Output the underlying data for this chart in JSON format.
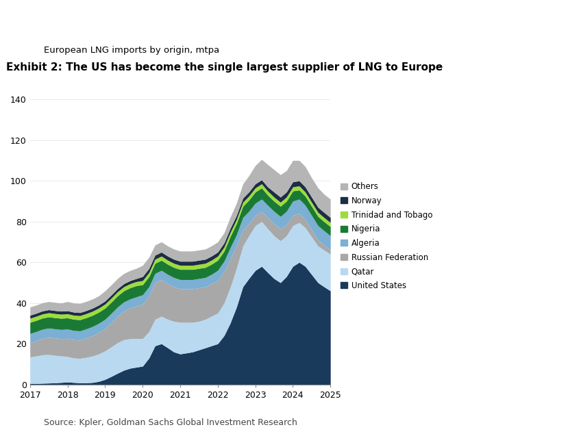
{
  "title": "Exhibit 2: The US has become the single largest supplier of LNG to Europe",
  "subtitle": "European LNG imports by origin, mtpa",
  "source": "Source: Kpler, Goldman Sachs Global Investment Research",
  "title_fontsize": 11,
  "subtitle_fontsize": 9.5,
  "source_fontsize": 9,
  "ylim": [
    0,
    140
  ],
  "yticks": [
    0,
    20,
    40,
    60,
    80,
    100,
    120,
    140
  ],
  "background_color": "#ffffff",
  "series_order": [
    "United States",
    "Qatar",
    "Russian Federation",
    "Algeria",
    "Nigeria",
    "Trinidad and Tobago",
    "Norway",
    "Others"
  ],
  "colors": {
    "United States": "#1a3a5c",
    "Qatar": "#b8d9f0",
    "Russian Federation": "#a8a8a8",
    "Algeria": "#7bafd4",
    "Nigeria": "#1a7a35",
    "Trinidad and Tobago": "#9edc3c",
    "Norway": "#1c2e44",
    "Others": "#b5b5b5"
  },
  "x_points": [
    2017.0,
    2017.17,
    2017.33,
    2017.5,
    2017.67,
    2017.83,
    2018.0,
    2018.17,
    2018.33,
    2018.5,
    2018.67,
    2018.83,
    2019.0,
    2019.17,
    2019.33,
    2019.5,
    2019.67,
    2019.83,
    2020.0,
    2020.17,
    2020.33,
    2020.5,
    2020.67,
    2020.83,
    2021.0,
    2021.17,
    2021.33,
    2021.5,
    2021.67,
    2021.83,
    2022.0,
    2022.17,
    2022.33,
    2022.5,
    2022.67,
    2022.83,
    2023.0,
    2023.17,
    2023.33,
    2023.5,
    2023.67,
    2023.83,
    2024.0,
    2024.17,
    2024.33,
    2024.5,
    2024.67,
    2024.83,
    2025.0
  ],
  "data": {
    "United States": [
      0.5,
      0.5,
      0.6,
      0.7,
      0.8,
      1.0,
      1.2,
      1.0,
      0.8,
      0.8,
      1.0,
      1.5,
      2.5,
      4.0,
      5.5,
      7.0,
      8.0,
      8.5,
      9.0,
      13.0,
      19.0,
      20.0,
      18.0,
      16.0,
      15.0,
      15.5,
      16.0,
      17.0,
      18.0,
      19.0,
      20.0,
      24.0,
      30.0,
      38.0,
      48.0,
      52.0,
      56.0,
      58.0,
      55.0,
      52.0,
      50.0,
      53.0,
      58.0,
      60.0,
      58.0,
      54.0,
      50.0,
      48.0,
      46.0
    ],
    "Qatar": [
      13.0,
      13.5,
      14.0,
      14.0,
      13.5,
      13.0,
      12.5,
      12.0,
      12.0,
      12.5,
      13.0,
      13.5,
      14.0,
      14.5,
      15.0,
      15.0,
      14.5,
      14.0,
      13.5,
      13.0,
      13.0,
      13.5,
      14.0,
      15.0,
      15.5,
      15.0,
      14.5,
      14.0,
      14.0,
      14.5,
      15.0,
      16.0,
      17.5,
      19.0,
      20.0,
      21.0,
      22.0,
      22.0,
      21.5,
      21.0,
      20.5,
      20.0,
      20.0,
      19.5,
      19.0,
      18.5,
      18.0,
      18.0,
      18.0
    ],
    "Russian Federation": [
      7.0,
      7.5,
      8.0,
      8.5,
      8.5,
      8.5,
      9.0,
      9.0,
      9.0,
      9.5,
      10.0,
      10.5,
      11.0,
      12.0,
      13.0,
      14.0,
      15.0,
      16.0,
      17.0,
      17.5,
      18.0,
      18.0,
      17.5,
      17.0,
      16.5,
      16.5,
      16.5,
      16.5,
      16.0,
      16.0,
      16.0,
      15.5,
      14.0,
      11.0,
      8.0,
      6.0,
      5.0,
      5.0,
      5.5,
      6.0,
      6.0,
      5.5,
      5.0,
      4.5,
      4.0,
      3.5,
      3.0,
      2.5,
      2.0
    ],
    "Algeria": [
      4.5,
      4.5,
      4.5,
      4.5,
      4.5,
      4.5,
      4.5,
      4.5,
      4.5,
      4.5,
      4.5,
      4.5,
      4.5,
      4.5,
      4.5,
      4.5,
      4.5,
      4.5,
      4.5,
      4.5,
      4.5,
      4.5,
      4.5,
      4.5,
      4.5,
      4.5,
      4.5,
      4.5,
      4.5,
      4.5,
      5.0,
      5.0,
      5.5,
      5.5,
      6.0,
      6.0,
      6.0,
      6.0,
      6.0,
      6.0,
      6.0,
      6.5,
      7.0,
      7.0,
      7.0,
      7.0,
      7.0,
      7.0,
      7.0
    ],
    "Nigeria": [
      5.5,
      5.5,
      5.5,
      5.5,
      5.5,
      5.5,
      5.5,
      5.5,
      5.5,
      5.5,
      5.5,
      5.5,
      5.5,
      5.5,
      5.5,
      5.5,
      5.5,
      5.5,
      5.0,
      5.0,
      5.0,
      5.0,
      5.0,
      5.0,
      5.0,
      5.0,
      5.0,
      5.0,
      5.0,
      5.0,
      5.0,
      5.0,
      5.5,
      5.5,
      5.5,
      5.5,
      5.5,
      5.5,
      5.0,
      5.0,
      5.0,
      5.0,
      5.0,
      4.5,
      4.5,
      4.5,
      4.5,
      4.5,
      4.5
    ],
    "Trinidad and Tobago": [
      2.0,
      2.0,
      2.0,
      2.0,
      2.0,
      2.0,
      2.0,
      2.0,
      2.0,
      2.0,
      2.0,
      2.0,
      2.0,
      2.0,
      2.0,
      2.0,
      2.0,
      2.0,
      2.0,
      2.0,
      2.0,
      2.0,
      2.0,
      2.0,
      2.0,
      2.0,
      2.0,
      2.0,
      2.0,
      2.0,
      2.0,
      2.0,
      2.0,
      2.0,
      2.0,
      2.0,
      2.0,
      2.0,
      2.0,
      2.0,
      2.0,
      2.0,
      2.0,
      2.0,
      2.0,
      2.0,
      2.0,
      2.0,
      2.0
    ],
    "Norway": [
      1.5,
      1.5,
      1.5,
      1.5,
      1.5,
      1.5,
      1.5,
      1.5,
      1.5,
      1.5,
      1.5,
      1.5,
      1.5,
      1.5,
      1.5,
      1.5,
      1.5,
      1.5,
      2.0,
      2.0,
      2.0,
      2.0,
      2.0,
      2.0,
      2.0,
      2.0,
      2.0,
      2.0,
      2.0,
      2.0,
      2.0,
      2.0,
      2.0,
      2.0,
      2.0,
      2.0,
      2.0,
      2.0,
      2.0,
      2.5,
      2.5,
      2.5,
      2.5,
      2.5,
      2.5,
      2.5,
      2.5,
      2.5,
      2.5
    ],
    "Others": [
      4.0,
      4.0,
      4.0,
      4.0,
      4.0,
      4.0,
      4.5,
      4.5,
      4.5,
      4.5,
      4.5,
      4.5,
      5.0,
      5.0,
      5.0,
      5.0,
      5.0,
      5.0,
      5.5,
      5.5,
      5.0,
      5.0,
      5.0,
      5.0,
      5.0,
      5.0,
      5.0,
      5.0,
      5.0,
      5.0,
      5.0,
      5.0,
      5.5,
      6.0,
      7.0,
      8.0,
      9.0,
      10.0,
      11.0,
      11.0,
      11.0,
      10.5,
      10.5,
      10.0,
      10.0,
      9.5,
      9.5,
      9.0,
      9.0
    ]
  }
}
